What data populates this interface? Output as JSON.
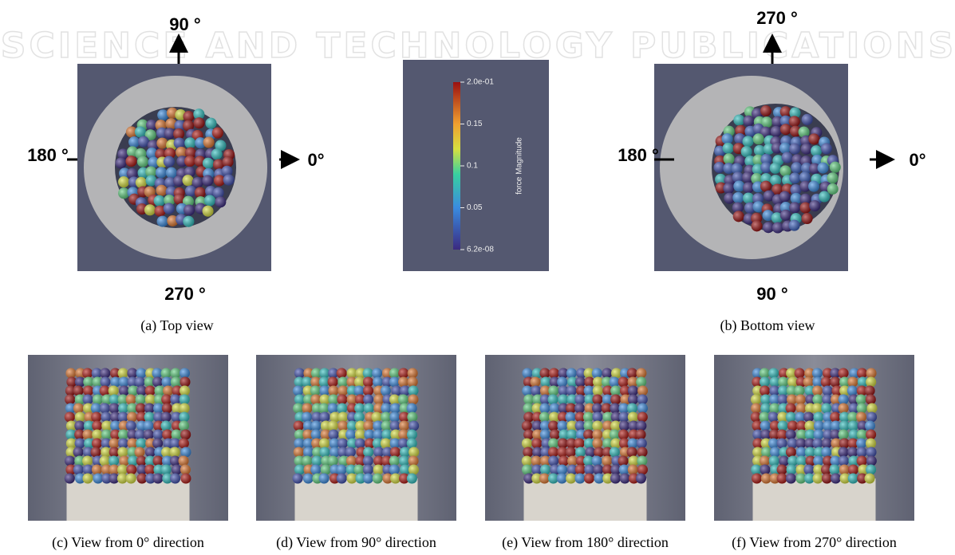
{
  "watermark": "SCIENCE AND TECHNOLOGY PUBLICATIONS",
  "top_view": {
    "label_top": "90 °",
    "label_left": "180 °",
    "label_right": "0°",
    "label_bottom": "270 °",
    "caption": "(a) Top view"
  },
  "colorbar": {
    "title": "force Magnitude",
    "ticks": [
      "2.0e-01",
      "0.15",
      "0.1",
      "0.05",
      "6.2e-08"
    ]
  },
  "bottom_view": {
    "label_top": "270 °",
    "label_left": "180 °",
    "label_right": "0°",
    "label_bottom": "90 °",
    "caption": "(b) Bottom view"
  },
  "side_views": [
    "(c) View from 0° direction",
    "(d) View from 90° direction",
    "(e) View from 180° direction",
    "(f) View from 270° direction"
  ]
}
